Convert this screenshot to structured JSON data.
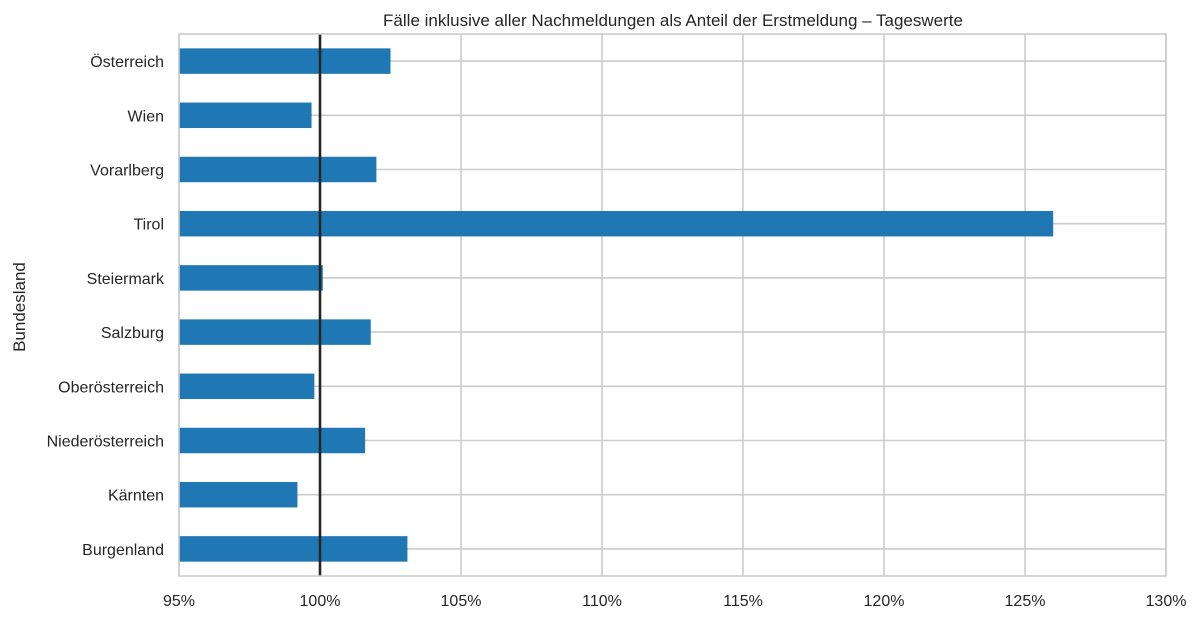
{
  "chart_data": {
    "type": "bar",
    "orientation": "horizontal",
    "title": "Fälle inklusive aller Nachmeldungen als Anteil der Erstmeldung – Tageswerte",
    "xlabel": "",
    "ylabel": "Bundesland",
    "xlim": [
      95,
      130
    ],
    "x_ticks": [
      95,
      100,
      105,
      110,
      115,
      120,
      125,
      130
    ],
    "x_tick_labels": [
      "95%",
      "100%",
      "105%",
      "110%",
      "115%",
      "120%",
      "125%",
      "130%"
    ],
    "reference_line": 100,
    "grid": true,
    "categories": [
      "Österreich",
      "Wien",
      "Vorarlberg",
      "Tirol",
      "Steiermark",
      "Salzburg",
      "Oberösterreich",
      "Niederösterreich",
      "Kärnten",
      "Burgenland"
    ],
    "values": [
      102.5,
      99.7,
      102.0,
      126.0,
      100.1,
      101.8,
      99.8,
      101.6,
      99.2,
      103.1
    ],
    "bar_color": "#1f77b4",
    "grid_color": "#cccccc",
    "reference_line_color": "#262626"
  }
}
